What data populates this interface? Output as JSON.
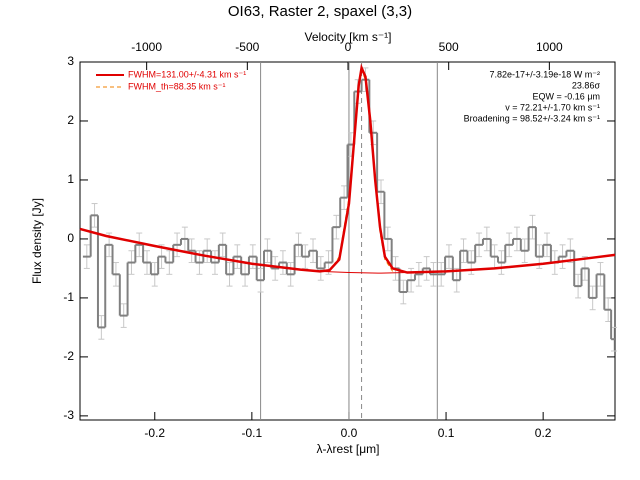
{
  "chart_data": {
    "type": "line",
    "title": "OI63, Raster 2, spaxel (3,3)",
    "xlabel": "λ-λrest [μm]",
    "ylabel": "Flux density [Jy]",
    "x2label": "Velocity [km s⁻¹]",
    "xlim": [
      -0.277,
      0.274
    ],
    "ylim": [
      -3.07,
      3.0
    ],
    "x2lim": [
      -1331,
      1326
    ],
    "xticks": [
      -0.2,
      -0.1,
      {
        "value": 0,
        "label": "0.0"
      },
      0.1,
      0.2
    ],
    "yticks": [
      -3,
      -2,
      -1,
      0,
      1,
      2,
      3
    ],
    "x2ticks": [
      -1000,
      -500,
      0,
      500,
      1000
    ],
    "vlines": [
      -0.091,
      0,
      0.091
    ],
    "center": 0.013,
    "legend": [
      "FWHM=131.00+/-4.31 km s⁻¹",
      "FWHM_th=88.35 km s⁻¹"
    ],
    "annotations": [
      "7.82e-17+/-3.19e-18 W m⁻²",
      "23.86σ",
      "EQW = -0.16 μm",
      "v = 72.21+/-1.70 km s⁻¹",
      "Broadening = 98.52+/-3.24 km s⁻¹"
    ],
    "data": {
      "color": "#808080",
      "x": [
        -0.27,
        -0.262,
        -0.255,
        -0.247,
        -0.24,
        -0.232,
        -0.224,
        -0.216,
        -0.208,
        -0.2,
        -0.193,
        -0.185,
        -0.177,
        -0.169,
        -0.162,
        -0.154,
        -0.146,
        -0.138,
        -0.13,
        -0.123,
        -0.115,
        -0.107,
        -0.099,
        -0.091,
        -0.084,
        -0.076,
        -0.068,
        -0.06,
        -0.052,
        -0.045,
        -0.037,
        -0.029,
        -0.021,
        -0.013,
        -0.005,
        0.002,
        0.009,
        0.017,
        0.025,
        0.033,
        0.04,
        0.048,
        0.056,
        0.064,
        0.072,
        0.08,
        0.087,
        0.095,
        0.103,
        0.111,
        0.118,
        0.126,
        0.134,
        0.142,
        0.15,
        0.157,
        0.165,
        0.173,
        0.181,
        0.189,
        0.196,
        0.204,
        0.212,
        0.22,
        0.228,
        0.236,
        0.243,
        0.251,
        0.259,
        0.267,
        0.273
      ],
      "values": [
        -0.3,
        0.4,
        -1.5,
        -0.1,
        -0.6,
        -1.3,
        -0.4,
        -0.1,
        -0.4,
        -0.6,
        -0.3,
        -0.4,
        -0.1,
        0.0,
        -0.2,
        -0.4,
        -0.2,
        -0.4,
        -0.1,
        -0.6,
        -0.3,
        -0.6,
        -0.3,
        -0.7,
        -0.2,
        -0.5,
        -0.4,
        -0.6,
        -0.1,
        -0.3,
        -0.2,
        -0.5,
        -0.4,
        0.2,
        0.7,
        1.6,
        2.5,
        2.7,
        1.8,
        0.8,
        0.0,
        -0.5,
        -0.9,
        -0.7,
        -0.6,
        -0.5,
        -0.6,
        -0.6,
        -0.3,
        -0.7,
        -0.2,
        -0.4,
        -0.1,
        0.0,
        -0.3,
        -0.4,
        -0.1,
        0.0,
        -0.2,
        0.2,
        -0.3,
        -0.1,
        -0.4,
        -0.3,
        -0.2,
        -0.8,
        -0.5,
        -1.0,
        -0.6,
        -1.2,
        -1.7
      ],
      "errors": [
        0.2,
        0.2,
        0.2,
        0.2,
        0.2,
        0.2,
        0.2,
        0.2,
        0.2,
        0.2,
        0.2,
        0.2,
        0.2,
        0.2,
        0.2,
        0.2,
        0.2,
        0.2,
        0.2,
        0.2,
        0.2,
        0.2,
        0.2,
        0.2,
        0.2,
        0.2,
        0.2,
        0.2,
        0.2,
        0.2,
        0.2,
        0.2,
        0.2,
        0.2,
        0.2,
        0.2,
        0.2,
        0.2,
        0.2,
        0.2,
        0.2,
        0.2,
        0.2,
        0.2,
        0.2,
        0.2,
        0.2,
        0.2,
        0.2,
        0.2,
        0.2,
        0.2,
        0.2,
        0.2,
        0.2,
        0.2,
        0.2,
        0.2,
        0.2,
        0.2,
        0.2,
        0.2,
        0.2,
        0.2,
        0.2,
        0.2,
        0.2,
        0.2,
        0.2,
        0.2,
        0.2
      ]
    },
    "fit": {
      "color": "#e00000",
      "x": [
        -0.277,
        -0.25,
        -0.2,
        -0.15,
        -0.1,
        -0.05,
        -0.03,
        -0.02,
        -0.01,
        0.0,
        0.005,
        0.01,
        0.013,
        0.017,
        0.022,
        0.027,
        0.032,
        0.037,
        0.045,
        0.06,
        0.1,
        0.15,
        0.2,
        0.25,
        0.274
      ],
      "values": [
        0.17,
        0.05,
        -0.12,
        -0.28,
        -0.42,
        -0.52,
        -0.55,
        -0.53,
        -0.35,
        0.6,
        1.6,
        2.6,
        2.9,
        2.75,
        2.0,
        1.0,
        0.2,
        -0.3,
        -0.5,
        -0.57,
        -0.55,
        -0.5,
        -0.42,
        -0.32,
        -0.27
      ]
    },
    "continuum": {
      "color": "#e00000",
      "x": [
        -0.03,
        0.0,
        0.03,
        0.06
      ],
      "values": [
        -0.55,
        -0.57,
        -0.58,
        -0.57
      ]
    },
    "gauss": {
      "color": "#f08000",
      "x": [
        -0.02,
        -0.01,
        0.0,
        0.005,
        0.01,
        0.013,
        0.017,
        0.022,
        0.027,
        0.032,
        0.037,
        0.045
      ],
      "values": [
        -0.55,
        -0.3,
        0.7,
        1.7,
        2.6,
        2.85,
        2.7,
        2.0,
        1.0,
        0.1,
        -0.35,
        -0.55
      ]
    }
  }
}
